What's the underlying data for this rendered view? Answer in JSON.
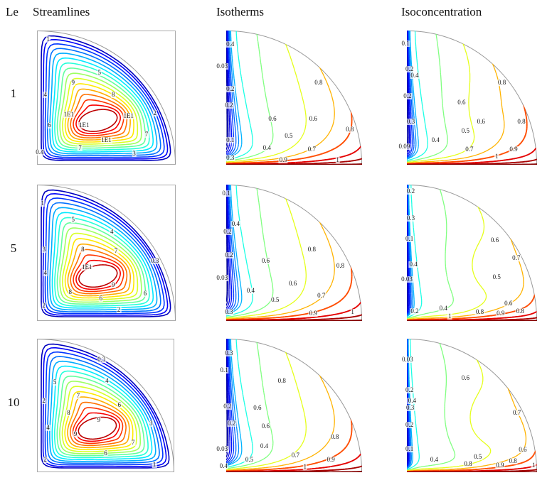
{
  "header": {
    "le": "Le",
    "columns": [
      "Streamlines",
      "Isotherms",
      "Isoconcentration"
    ]
  },
  "rows": [
    {
      "le": "1"
    },
    {
      "le": "5"
    },
    {
      "le": "10"
    }
  ],
  "style": {
    "background": "#ffffff",
    "boundary_color": "#999999",
    "label_color": "#1a1a1a",
    "colormap": "rainbow-jet (blue=low, red=high)"
  },
  "chart_data": [
    {
      "row_le": "1",
      "column": "Streamlines",
      "type": "contour",
      "field": "stream",
      "domain": "quarter-disc cavity cross-section",
      "levels_labeled": [
        "0.4",
        "1",
        "2",
        "3",
        "4",
        "5",
        "6",
        "7",
        "8",
        "9",
        "1E1"
      ],
      "labels": [
        [
          "1",
          0.08,
          0.07
        ],
        [
          "5",
          0.45,
          0.32
        ],
        [
          "9",
          0.26,
          0.39
        ],
        [
          "4",
          0.06,
          0.48
        ],
        [
          "8",
          0.55,
          0.48
        ],
        [
          "1E1",
          0.23,
          0.63
        ],
        [
          "1E1",
          0.66,
          0.64
        ],
        [
          "2",
          0.85,
          0.62
        ],
        [
          "1E1",
          0.34,
          0.71
        ],
        [
          "6",
          0.09,
          0.71
        ],
        [
          "7",
          0.79,
          0.78
        ],
        [
          "1E1",
          0.5,
          0.82
        ],
        [
          "7",
          0.31,
          0.88
        ],
        [
          "0.4",
          0.02,
          0.91
        ],
        [
          "3",
          0.7,
          0.92
        ]
      ]
    },
    {
      "row_le": "1",
      "column": "Isotherms",
      "type": "contour",
      "field": "isotherm",
      "domain": "quarter-disc cavity cross-section",
      "levels_labeled": [
        "0.03",
        "0.1",
        "0.2",
        "0.3",
        "0.4",
        "0.5",
        "0.6",
        "0.7",
        "0.8",
        "0.9",
        "1"
      ],
      "labels": [
        [
          "0.4",
          0.03,
          0.105
        ],
        [
          "0.03",
          -0.03,
          0.27
        ],
        [
          "0.8",
          0.68,
          0.39
        ],
        [
          "0.2",
          0.03,
          0.44
        ],
        [
          "0.2",
          0.02,
          0.56
        ],
        [
          "0.6",
          0.34,
          0.66
        ],
        [
          "0.6",
          0.64,
          0.66
        ],
        [
          "0.8",
          0.91,
          0.74
        ],
        [
          "0.5",
          0.46,
          0.79
        ],
        [
          "0.1",
          0.03,
          0.82
        ],
        [
          "0.4",
          0.3,
          0.88
        ],
        [
          "0.7",
          0.63,
          0.89
        ],
        [
          "0.3",
          0.03,
          0.95
        ],
        [
          "0.9",
          0.42,
          0.97
        ],
        [
          "1",
          0.82,
          0.97
        ]
      ]
    },
    {
      "row_le": "1",
      "column": "Isoconcentration",
      "type": "contour",
      "field": "isoconc",
      "domain": "quarter-disc cavity cross-section",
      "levels_labeled": [
        "0.09",
        "0.1",
        "0.2",
        "0.3",
        "0.4",
        "0.5",
        "0.6",
        "0.7",
        "0.8",
        "0.9",
        "1"
      ],
      "labels": [
        [
          "0.1",
          -0.01,
          0.1
        ],
        [
          "0.2",
          0.02,
          0.29
        ],
        [
          "0.4",
          0.06,
          0.34
        ],
        [
          "0.8",
          0.73,
          0.39
        ],
        [
          "0.2",
          0.005,
          0.49
        ],
        [
          "0.6",
          0.42,
          0.54
        ],
        [
          "0.3",
          0.03,
          0.68
        ],
        [
          "0.6",
          0.57,
          0.68
        ],
        [
          "0.8",
          0.88,
          0.68
        ],
        [
          "0.5",
          0.45,
          0.75
        ],
        [
          "0.4",
          0.22,
          0.82
        ],
        [
          "0.09",
          -0.02,
          0.87
        ],
        [
          "0.7",
          0.48,
          0.89
        ],
        [
          "0.9",
          0.82,
          0.89
        ],
        [
          "1",
          0.69,
          0.94
        ]
      ]
    },
    {
      "row_le": "5",
      "column": "Streamlines",
      "type": "contour",
      "field": "stream",
      "domain": "quarter-disc cavity cross-section",
      "levels_labeled": [
        "0.3",
        "1",
        "2",
        "3",
        "4",
        "5",
        "6",
        "7",
        "8",
        "9",
        "1E1"
      ],
      "labels": [
        [
          "1",
          0.04,
          0.14
        ],
        [
          "5",
          0.26,
          0.26
        ],
        [
          "4",
          0.54,
          0.35
        ],
        [
          "3",
          0.05,
          0.48
        ],
        [
          "8",
          0.33,
          0.48
        ],
        [
          "7",
          0.57,
          0.49
        ],
        [
          "0.3",
          0.85,
          0.56
        ],
        [
          "1E1",
          0.36,
          0.61
        ],
        [
          "4",
          0.06,
          0.65
        ],
        [
          "9",
          0.55,
          0.74
        ],
        [
          "8",
          0.24,
          0.79
        ],
        [
          "6",
          0.78,
          0.8
        ],
        [
          "6",
          0.46,
          0.84
        ],
        [
          "2",
          0.05,
          0.89
        ],
        [
          "2",
          0.59,
          0.92
        ]
      ]
    },
    {
      "row_le": "5",
      "column": "Isotherms",
      "type": "contour",
      "field": "isotherm",
      "domain": "quarter-disc cavity cross-section",
      "levels_labeled": [
        "0.03",
        "0.1",
        "0.2",
        "0.3",
        "0.4",
        "0.5",
        "0.6",
        "0.7",
        "0.8",
        "0.9",
        "1"
      ],
      "labels": [
        [
          "0.1",
          0.0,
          0.07
        ],
        [
          "0.4",
          0.07,
          0.29
        ],
        [
          "0.2",
          0.01,
          0.35
        ],
        [
          "0.8",
          0.63,
          0.48
        ],
        [
          "0.2",
          0.02,
          0.52
        ],
        [
          "0.6",
          0.29,
          0.56
        ],
        [
          "0.8",
          0.84,
          0.6
        ],
        [
          "0.03",
          -0.03,
          0.69
        ],
        [
          "0.6",
          0.49,
          0.73
        ],
        [
          "0.4",
          0.18,
          0.78
        ],
        [
          "0.7",
          0.7,
          0.82
        ],
        [
          "0.5",
          0.36,
          0.85
        ],
        [
          "0.3",
          0.02,
          0.94
        ],
        [
          "0.9",
          0.64,
          0.95
        ],
        [
          "1",
          0.93,
          0.94
        ]
      ]
    },
    {
      "row_le": "5",
      "column": "Isoconcentration",
      "type": "contour",
      "field": "isoconc",
      "domain": "quarter-disc cavity cross-section",
      "levels_labeled": [
        "0.03",
        "0.1",
        "0.2",
        "0.3",
        "0.4",
        "0.5",
        "0.6",
        "0.7",
        "0.8",
        "0.9",
        "1"
      ],
      "labels": [
        [
          "0.2",
          0.03,
          0.05
        ],
        [
          "0.3",
          0.03,
          0.25
        ],
        [
          "0.1",
          0.02,
          0.4
        ],
        [
          "0.6",
          0.675,
          0.41
        ],
        [
          "0.7",
          0.84,
          0.54
        ],
        [
          "0.4",
          0.05,
          0.59
        ],
        [
          "0.03",
          0.0,
          0.7
        ],
        [
          "0.5",
          0.69,
          0.68
        ],
        [
          "0.6",
          0.78,
          0.875
        ],
        [
          "0.2",
          0.06,
          0.93
        ],
        [
          "0.4",
          0.28,
          0.91
        ],
        [
          "0.8",
          0.56,
          0.94
        ],
        [
          "0.9",
          0.72,
          0.95
        ],
        [
          "0.8",
          0.87,
          0.93
        ],
        [
          "1",
          0.33,
          0.97
        ]
      ]
    },
    {
      "row_le": "10",
      "column": "Streamlines",
      "type": "contour",
      "field": "stream",
      "domain": "quarter-disc cavity cross-section",
      "levels_labeled": [
        "0.3",
        "1",
        "2",
        "3",
        "4",
        "5",
        "6",
        "7",
        "8",
        "9"
      ],
      "labels": [
        [
          "0.3",
          0.47,
          0.16
        ],
        [
          "5",
          0.13,
          0.33
        ],
        [
          "4",
          0.51,
          0.32
        ],
        [
          "7",
          0.3,
          0.43
        ],
        [
          "2",
          0.05,
          0.47
        ],
        [
          "6",
          0.6,
          0.5
        ],
        [
          "8",
          0.23,
          0.56
        ],
        [
          "9",
          0.45,
          0.61
        ],
        [
          "3",
          0.83,
          0.64
        ],
        [
          "4",
          0.08,
          0.67
        ],
        [
          "9",
          0.28,
          0.72
        ],
        [
          "7",
          0.7,
          0.78
        ],
        [
          "6",
          0.5,
          0.86
        ],
        [
          "2",
          0.06,
          0.91
        ],
        [
          "1",
          0.855,
          0.945
        ]
      ]
    },
    {
      "row_le": "10",
      "column": "Isotherms",
      "type": "contour",
      "field": "isotherm",
      "levels_labeled": [
        "0.03",
        "0.1",
        "0.2",
        "0.3",
        "0.4",
        "0.5",
        "0.6",
        "0.7",
        "0.8",
        "0.9",
        "1"
      ],
      "domain": "quarter-disc cavity cross-section",
      "labels": [
        [
          "0.3",
          0.02,
          0.11
        ],
        [
          "0.1",
          -0.015,
          0.24
        ],
        [
          "0.8",
          0.41,
          0.32
        ],
        [
          "0.2",
          0.01,
          0.51
        ],
        [
          "0.6",
          0.23,
          0.52
        ],
        [
          "0.2",
          0.04,
          0.64
        ],
        [
          "0.6",
          0.29,
          0.66
        ],
        [
          "0.8",
          0.8,
          0.74
        ],
        [
          "0.4",
          0.28,
          0.81
        ],
        [
          "0.03",
          -0.03,
          0.83
        ],
        [
          "0.7",
          0.51,
          0.88
        ],
        [
          "0.5",
          0.17,
          0.91
        ],
        [
          "0.9",
          0.77,
          0.91
        ],
        [
          "0.4",
          -0.02,
          0.955
        ],
        [
          "1",
          0.58,
          0.965
        ]
      ]
    },
    {
      "row_le": "10",
      "column": "Isoconcentration",
      "type": "contour",
      "field": "isoconc",
      "levels_labeled": [
        "0.03",
        "0.1",
        "0.2",
        "0.3",
        "0.4",
        "0.5",
        "0.6",
        "0.7",
        "0.8",
        "0.9",
        "1"
      ],
      "domain": "quarter-disc cavity cross-section",
      "labels": [
        [
          "0.03",
          0.005,
          0.16
        ],
        [
          "0.6",
          0.45,
          0.3
        ],
        [
          "0.2",
          0.02,
          0.39
        ],
        [
          "0.4",
          0.04,
          0.47
        ],
        [
          "0.3",
          0.025,
          0.52
        ],
        [
          "0.7",
          0.845,
          0.56
        ],
        [
          "0.2",
          0.02,
          0.65
        ],
        [
          "0.1",
          0.02,
          0.83
        ],
        [
          "0.6",
          0.89,
          0.835
        ],
        [
          "0.4",
          0.21,
          0.91
        ],
        [
          "0.5",
          0.545,
          0.89
        ],
        [
          "0.8",
          0.815,
          0.92
        ],
        [
          "0.8",
          0.47,
          0.94
        ],
        [
          "0.9",
          0.715,
          0.95
        ],
        [
          "1",
          0.975,
          0.95
        ]
      ]
    }
  ]
}
